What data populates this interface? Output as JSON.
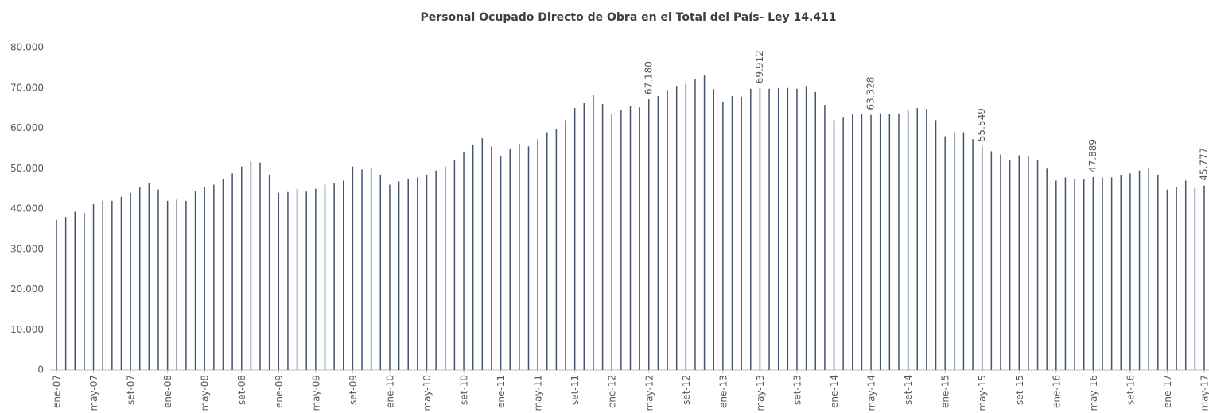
{
  "chart_data": {
    "type": "bar",
    "title": "Personal Ocupado Directo de Obra en el Total del País- Ley 14.411",
    "categories": [
      "ene-07",
      null,
      null,
      null,
      "may-07",
      null,
      null,
      null,
      "set-07",
      null,
      null,
      null,
      "ene-08",
      null,
      null,
      null,
      "may-08",
      null,
      null,
      null,
      "set-08",
      null,
      null,
      null,
      "ene-09",
      null,
      null,
      null,
      "may-09",
      null,
      null,
      null,
      "set-09",
      null,
      null,
      null,
      "ene-10",
      null,
      null,
      null,
      "may-10",
      null,
      null,
      null,
      "set-10",
      null,
      null,
      null,
      "ene-11",
      null,
      null,
      null,
      "may-11",
      null,
      null,
      null,
      "set-11",
      null,
      null,
      null,
      "ene-12",
      null,
      null,
      null,
      "may-12",
      null,
      null,
      null,
      "set-12",
      null,
      null,
      null,
      "ene-13",
      null,
      null,
      null,
      "may-13",
      null,
      null,
      null,
      "set-13",
      null,
      null,
      null,
      "ene-14",
      null,
      null,
      null,
      "may-14",
      null,
      null,
      null,
      "set-14",
      null,
      null,
      null,
      "ene-15",
      null,
      null,
      null,
      "may-15",
      null,
      null,
      null,
      "set-15",
      null,
      null,
      null,
      "ene-16",
      null,
      null,
      null,
      "may-16",
      null,
      null,
      null,
      "set-16",
      null,
      null,
      null,
      "ene-17",
      null,
      null,
      null,
      "may-17"
    ],
    "values": [
      37300,
      38000,
      39300,
      39000,
      41200,
      42000,
      42000,
      43000,
      44000,
      45500,
      46500,
      44800,
      42000,
      42300,
      42000,
      44500,
      45500,
      46000,
      47500,
      48800,
      50500,
      51800,
      51500,
      48500,
      44000,
      44200,
      45000,
      44300,
      45000,
      46000,
      46500,
      47000,
      50500,
      49800,
      50200,
      48500,
      46000,
      46800,
      47500,
      47800,
      48500,
      49500,
      50500,
      52000,
      54000,
      56000,
      57500,
      55500,
      53000,
      54800,
      56200,
      55500,
      57300,
      59000,
      59800,
      62000,
      65000,
      66200,
      68200,
      66000,
      63500,
      64500,
      65500,
      65200,
      67180,
      68000,
      69500,
      70500,
      71000,
      72200,
      73300,
      69700,
      66500,
      68000,
      67800,
      69800,
      69912,
      69800,
      70000,
      70000,
      69800,
      70500,
      69000,
      65800,
      62000,
      62800,
      63500,
      63600,
      63328,
      63700,
      63600,
      63700,
      64500,
      65000,
      64800,
      62000,
      58000,
      59000,
      59000,
      57300,
      55549,
      54300,
      53500,
      52000,
      53300,
      53000,
      52200,
      50000,
      47000,
      47800,
      47500,
      47300,
      47889,
      47800,
      47800,
      48500,
      48800,
      49500,
      50300,
      48500,
      44800,
      45500,
      47000,
      45200,
      45777
    ],
    "value_labels": [
      null,
      null,
      null,
      null,
      null,
      null,
      null,
      null,
      null,
      null,
      null,
      null,
      null,
      null,
      null,
      null,
      null,
      null,
      null,
      null,
      null,
      null,
      null,
      null,
      null,
      null,
      null,
      null,
      null,
      null,
      null,
      null,
      null,
      null,
      null,
      null,
      null,
      null,
      null,
      null,
      null,
      null,
      null,
      null,
      null,
      null,
      null,
      null,
      null,
      null,
      null,
      null,
      null,
      null,
      null,
      null,
      null,
      null,
      null,
      null,
      null,
      null,
      null,
      null,
      "67.180",
      null,
      null,
      null,
      null,
      null,
      null,
      null,
      null,
      null,
      null,
      null,
      "69.912",
      null,
      null,
      null,
      null,
      null,
      null,
      null,
      null,
      null,
      null,
      null,
      "63.328",
      null,
      null,
      null,
      null,
      null,
      null,
      null,
      null,
      null,
      null,
      null,
      "55.549",
      null,
      null,
      null,
      null,
      null,
      null,
      null,
      null,
      null,
      null,
      null,
      "47.889",
      null,
      null,
      null,
      null,
      null,
      null,
      null,
      null,
      null,
      null,
      null,
      "45.777"
    ],
    "color": "#44546a",
    "ylim": [
      0,
      80000
    ],
    "yticks": [
      0,
      {
        "value": 10000,
        "label": "10.000"
      },
      {
        "value": 20000,
        "label": "20.000"
      },
      {
        "value": 30000,
        "label": "30.000"
      },
      {
        "value": 40000,
        "label": "40.000"
      },
      {
        "value": 50000,
        "label": "50.000"
      },
      {
        "value": 60000,
        "label": "60.000"
      },
      {
        "value": 70000,
        "label": "70.000"
      },
      {
        "value": 80000,
        "label": "80.000"
      }
    ],
    "grid": false
  }
}
